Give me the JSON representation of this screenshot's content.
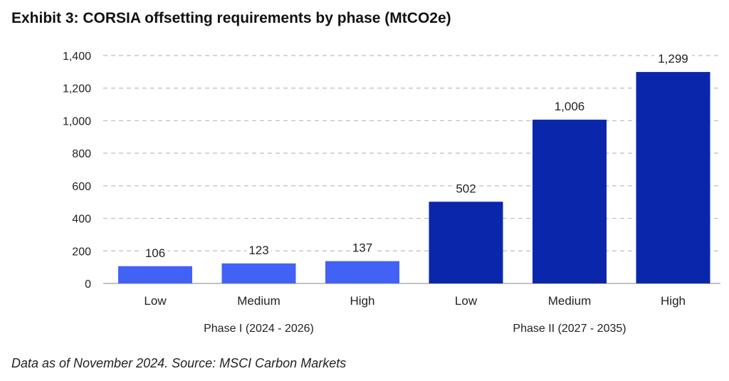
{
  "title": "Exhibit 3: CORSIA offsetting requirements by phase (MtCO2e)",
  "footnote": "Data as of November 2024. Source: MSCI Carbon Markets",
  "colors": {
    "phase1": "#4262f6",
    "phase2": "#0a27ac",
    "grid": "#bdbdbd",
    "text": "#222222"
  },
  "chart_data": {
    "type": "bar",
    "groups": [
      {
        "label": "Phase I (2024 - 2026)",
        "color": "#4262f6",
        "categories": [
          "Low",
          "Medium",
          "High"
        ],
        "values": [
          106,
          123,
          137
        ],
        "value_labels": [
          "106",
          "123",
          "137"
        ]
      },
      {
        "label": "Phase II (2027 - 2035)",
        "color": "#0a27ac",
        "categories": [
          "Low",
          "Medium",
          "High"
        ],
        "values": [
          502,
          1006,
          1299
        ],
        "value_labels": [
          "502",
          "1,006",
          "1,299"
        ]
      }
    ],
    "ylim": [
      0,
      1400
    ],
    "yticks": [
      0,
      200,
      400,
      600,
      800,
      1000,
      1200,
      1400
    ],
    "ytick_labels": [
      "0",
      "200",
      "400",
      "600",
      "800",
      "1,000",
      "1,200",
      "1,400"
    ],
    "grid": true,
    "legend": "none"
  }
}
